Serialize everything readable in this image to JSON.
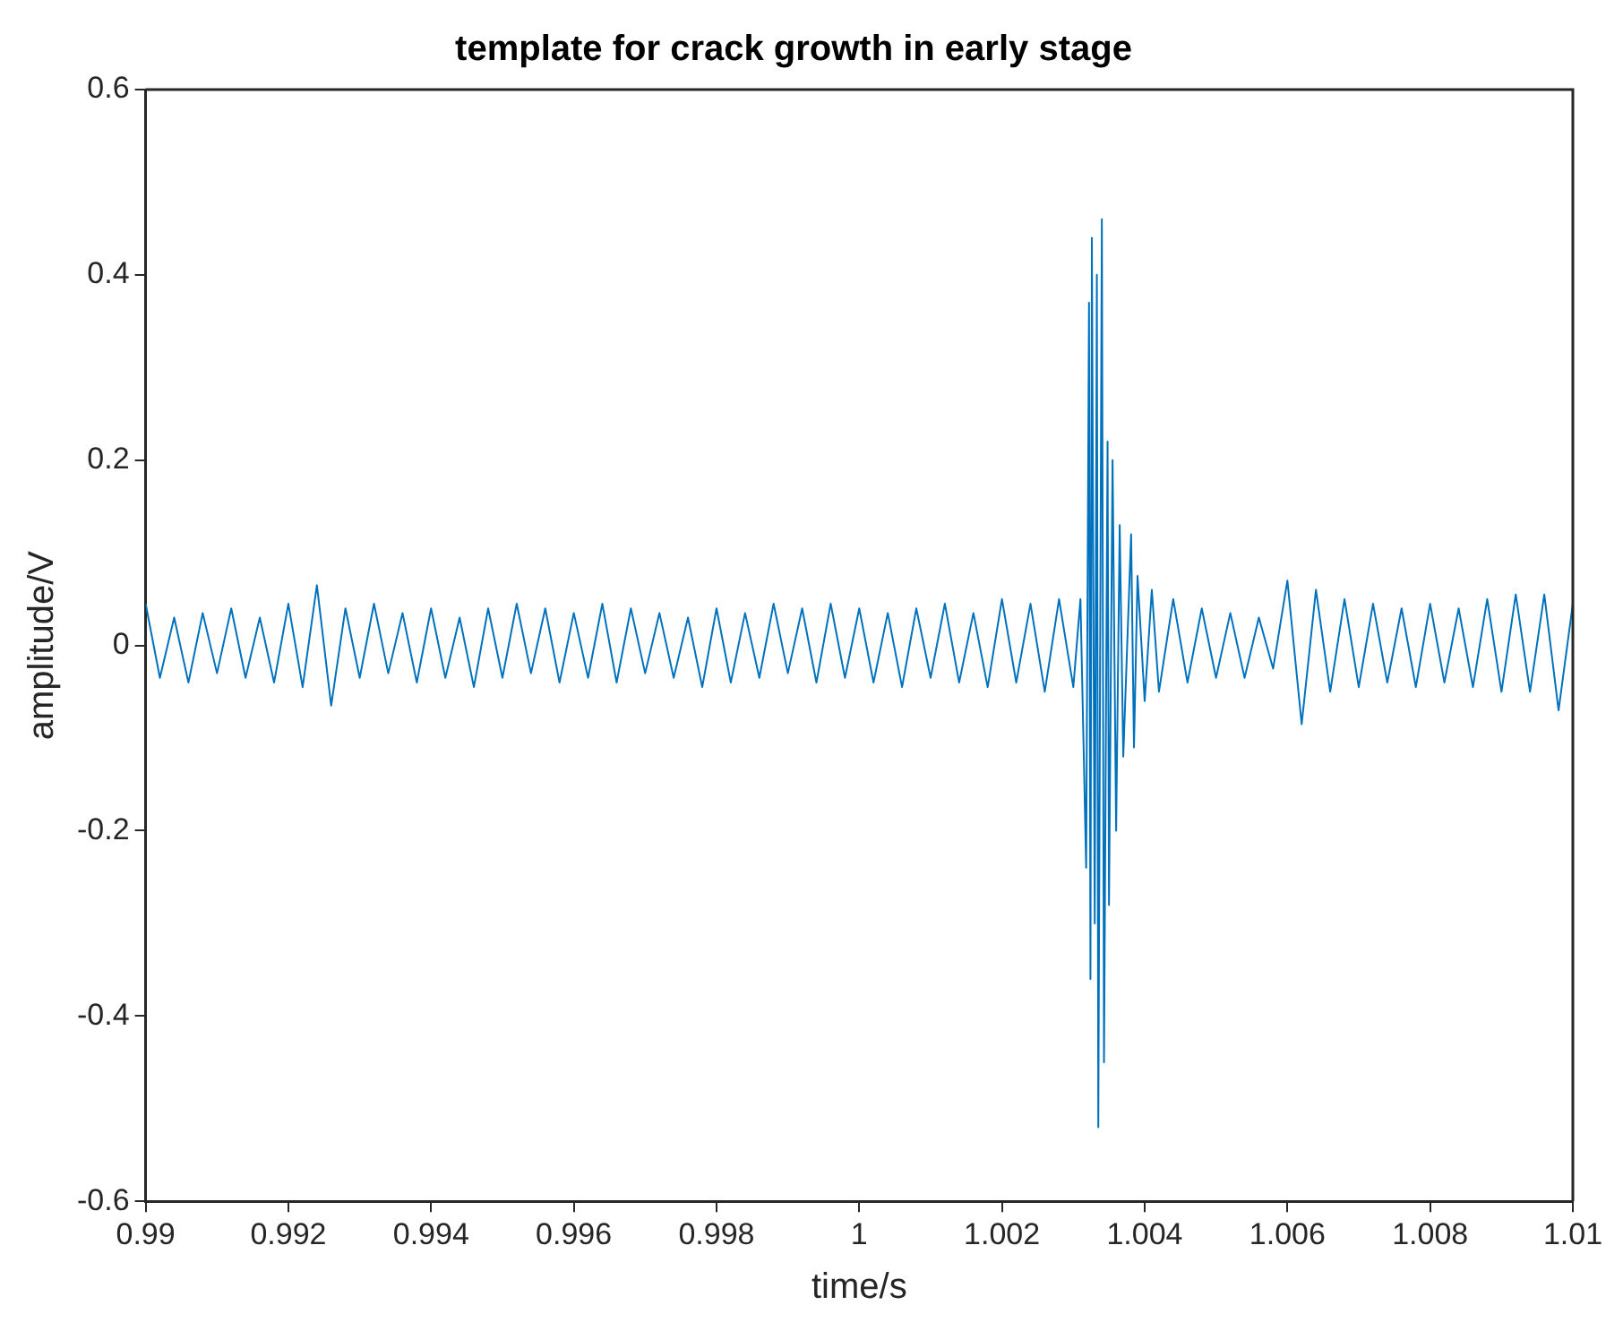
{
  "chart_data": {
    "type": "line",
    "title": "template for crack growth in early stage",
    "xlabel": "time/s",
    "ylabel": "amplitude/V",
    "xlim": [
      0.99,
      1.01
    ],
    "xticks": [
      0.99,
      0.992,
      0.994,
      0.996,
      0.998,
      1,
      1.002,
      1.004,
      1.006,
      1.008,
      1.01
    ],
    "ylim": [
      -0.6,
      0.6
    ],
    "yticks": [
      -0.6,
      -0.4,
      -0.2,
      0,
      0.2,
      0.4,
      0.6
    ],
    "grid": false,
    "legend": false,
    "marker": "none",
    "line_style": "solid",
    "series": [
      {
        "color": "#0072bd",
        "x": [
          0.99,
          0.9902,
          0.9904,
          0.9906,
          0.9908,
          0.991,
          0.9912,
          0.9914,
          0.9916,
          0.9918,
          0.992,
          0.9922,
          0.9924,
          0.9926,
          0.9928,
          0.993,
          0.9932,
          0.9934,
          0.9936,
          0.9938,
          0.994,
          0.9942,
          0.9944,
          0.9946,
          0.9948,
          0.995,
          0.9952,
          0.9954,
          0.9956,
          0.9958,
          0.996,
          0.9962,
          0.9964,
          0.9966,
          0.9968,
          0.997,
          0.9972,
          0.9974,
          0.9976,
          0.9978,
          0.998,
          0.9982,
          0.9984,
          0.9986,
          0.9988,
          0.999,
          0.9992,
          0.9994,
          0.9996,
          0.9998,
          1,
          1.0002,
          1.0004,
          1.0006,
          1.0008,
          1.001,
          1.0012,
          1.0014,
          1.0016,
          1.0018,
          1.002,
          1.0022,
          1.0024,
          1.0026,
          1.0028,
          1.003,
          1.0031,
          1.00318,
          1.00322,
          1.00324,
          1.00326,
          1.0033,
          1.00333,
          1.00335,
          1.0034,
          1.00343,
          1.00348,
          1.0035,
          1.00355,
          1.0036,
          1.00365,
          1.0037,
          1.00381,
          1.00385,
          1.0039,
          1.004,
          1.0041,
          1.0042,
          1.0044,
          1.0046,
          1.0048,
          1.005,
          1.0052,
          1.0054,
          1.0056,
          1.0058,
          1.006,
          1.0062,
          1.0064,
          1.0066,
          1.0068,
          1.007,
          1.0072,
          1.0074,
          1.0076,
          1.0078,
          1.008,
          1.0082,
          1.0084,
          1.0086,
          1.0088,
          1.009,
          1.0092,
          1.0094,
          1.0096,
          1.0098,
          1.01
        ],
        "values": [
          0.045,
          -0.035,
          0.03,
          -0.04,
          0.035,
          -0.03,
          0.04,
          -0.035,
          0.03,
          -0.04,
          0.045,
          -0.045,
          0.065,
          -0.065,
          0.04,
          -0.035,
          0.045,
          -0.03,
          0.035,
          -0.04,
          0.04,
          -0.035,
          0.03,
          -0.045,
          0.04,
          -0.035,
          0.045,
          -0.03,
          0.04,
          -0.04,
          0.035,
          -0.035,
          0.045,
          -0.04,
          0.04,
          -0.03,
          0.035,
          -0.035,
          0.03,
          -0.045,
          0.04,
          -0.04,
          0.035,
          -0.035,
          0.045,
          -0.03,
          0.04,
          -0.04,
          0.045,
          -0.035,
          0.04,
          -0.04,
          0.035,
          -0.045,
          0.04,
          -0.035,
          0.045,
          -0.04,
          0.035,
          -0.045,
          0.05,
          -0.04,
          0.045,
          -0.05,
          0.05,
          -0.045,
          0.05,
          -0.24,
          0.37,
          -0.36,
          0.44,
          -0.3,
          0.4,
          -0.52,
          0.46,
          -0.45,
          0.22,
          -0.28,
          0.2,
          -0.2,
          0.13,
          -0.12,
          0.12,
          -0.11,
          0.075,
          -0.06,
          0.06,
          -0.05,
          0.05,
          -0.04,
          0.04,
          -0.035,
          0.035,
          -0.035,
          0.03,
          -0.025,
          0.07,
          -0.085,
          0.06,
          -0.05,
          0.05,
          -0.045,
          0.045,
          -0.04,
          0.04,
          -0.045,
          0.045,
          -0.04,
          0.04,
          -0.045,
          0.05,
          -0.05,
          0.055,
          -0.05,
          0.055,
          -0.07,
          0.045
        ]
      }
    ]
  }
}
